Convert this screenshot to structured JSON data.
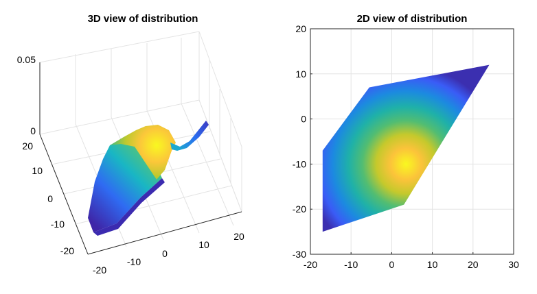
{
  "chart_data": [
    {
      "type": "surface3d",
      "title": "3D view of distribution",
      "xlabel": "",
      "ylabel": "",
      "zlabel": "",
      "xlim": [
        -20,
        20
      ],
      "ylim": [
        -20,
        20
      ],
      "zlim": [
        0,
        0.05
      ],
      "x_ticks": [
        "-20",
        "-10",
        "0",
        "10",
        "20"
      ],
      "y_ticks": [
        "-20",
        "-10",
        "0",
        "10",
        "20"
      ],
      "z_ticks": [
        "0",
        "0.05"
      ],
      "grid": true,
      "colormap": "parula",
      "distribution": {
        "peak_x": 3.5,
        "peak_y": -10,
        "peak_value": 0.021,
        "sigma": 9
      },
      "support_polygon": [
        [
          -17,
          -25
        ],
        [
          -17,
          -7
        ],
        [
          -5.5,
          7
        ],
        [
          24,
          12
        ],
        [
          3,
          -19
        ]
      ]
    },
    {
      "type": "heatmap",
      "title": "2D view of distribution",
      "xlabel": "",
      "ylabel": "",
      "xlim": [
        -20,
        30
      ],
      "ylim": [
        -30,
        20
      ],
      "x_ticks": [
        "-20",
        "-10",
        "0",
        "10",
        "20",
        "30"
      ],
      "y_ticks": [
        "20",
        "10",
        "0",
        "-10",
        "-20",
        "-30"
      ],
      "grid": true,
      "colormap": "parula",
      "distribution": {
        "peak_x": 3.5,
        "peak_y": -10,
        "sigma": 9
      },
      "support_polygon": [
        [
          -17,
          -25
        ],
        [
          -17,
          -7
        ],
        [
          -5.5,
          7
        ],
        [
          24,
          12
        ],
        [
          3,
          -19
        ]
      ]
    }
  ]
}
